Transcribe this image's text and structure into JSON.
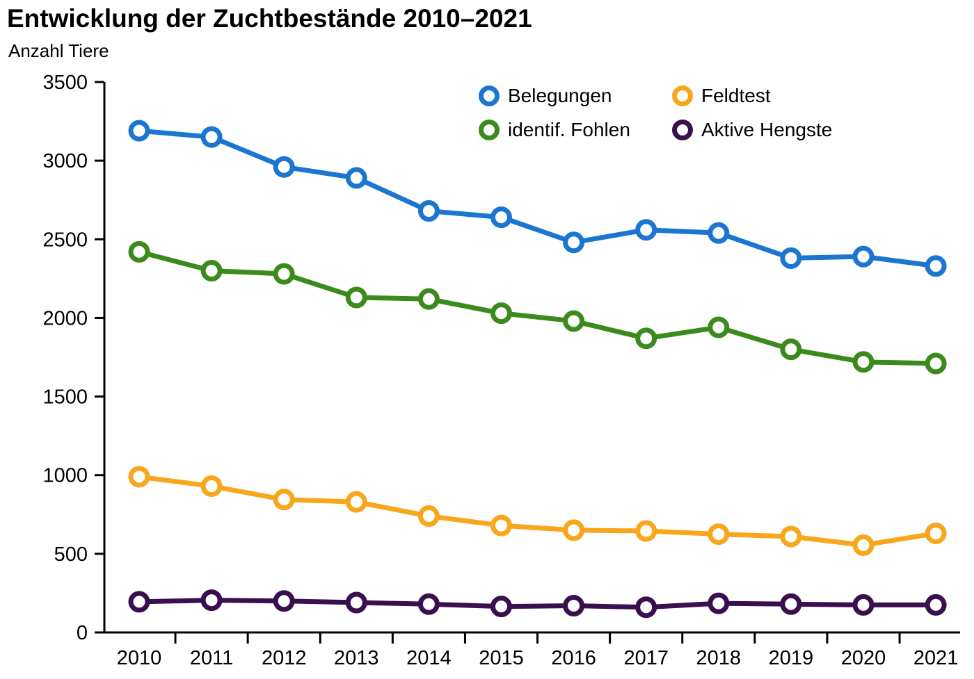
{
  "chart_data": {
    "type": "line",
    "title": "Entwicklung der Zuchtbestände 2010–2021",
    "ylabel": "Anzahl Tiere",
    "xlabel": "",
    "categories": [
      "2010",
      "2011",
      "2012",
      "2013",
      "2014",
      "2015",
      "2016",
      "2017",
      "2018",
      "2019",
      "2020",
      "2021"
    ],
    "yticks": [
      0,
      500,
      1000,
      1500,
      2000,
      2500,
      3000,
      3500
    ],
    "ylim": [
      0,
      3500
    ],
    "grid": false,
    "legend_position": "top-center, two columns inside plot",
    "legend_order": [
      0,
      2,
      1,
      3
    ],
    "marker": {
      "shape": "circle",
      "fill": "#ffffff"
    },
    "series": [
      {
        "name": "Belegungen",
        "color": "#1b76d1",
        "values": [
          3190,
          3150,
          2960,
          2890,
          2680,
          2640,
          2480,
          2560,
          2540,
          2380,
          2390,
          2330
        ]
      },
      {
        "name": "identif. Fohlen",
        "color": "#3a8a1c",
        "values": [
          2420,
          2300,
          2280,
          2130,
          2120,
          2030,
          1980,
          1870,
          1940,
          1800,
          1720,
          1710
        ]
      },
      {
        "name": "Feldtest",
        "color": "#f8a71c",
        "values": [
          990,
          930,
          845,
          830,
          740,
          680,
          650,
          645,
          625,
          610,
          555,
          630
        ]
      },
      {
        "name": "Aktive Hengste",
        "color": "#3a0f50",
        "values": [
          195,
          205,
          200,
          190,
          180,
          165,
          170,
          160,
          185,
          180,
          175,
          175
        ]
      }
    ]
  }
}
